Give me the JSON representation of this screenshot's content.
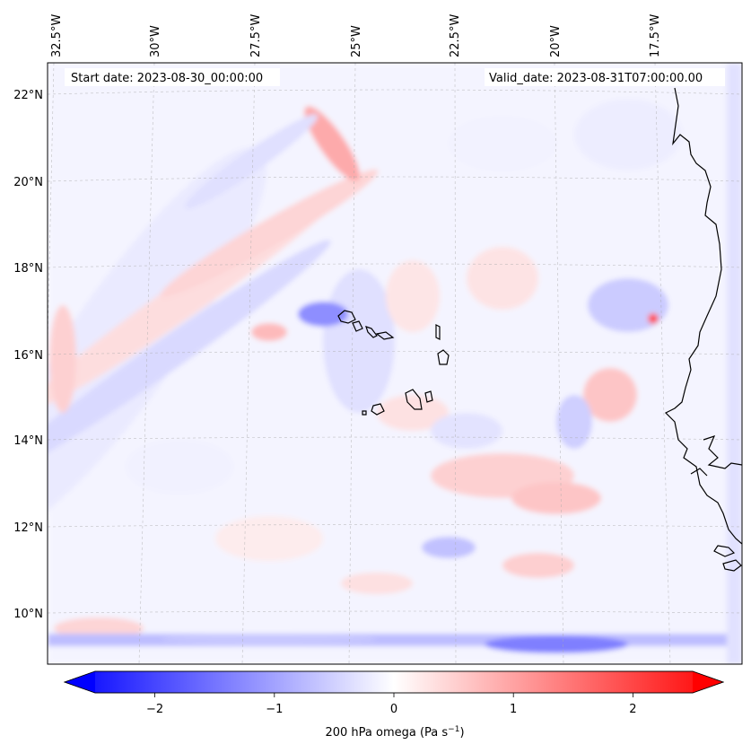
{
  "header": {
    "start_label": "Start date: 2023-08-30_00:00:00",
    "valid_label": "Valid_date: 2023-08-31T07:00:00.00"
  },
  "lon_labels": [
    "32.5°W",
    "30°W",
    "27.5°W",
    "25°W",
    "22.5°W",
    "20°W",
    "17.5°W"
  ],
  "lat_labels": [
    "22°N",
    "20°N",
    "18°N",
    "16°N",
    "14°N",
    "12°N",
    "10°N"
  ],
  "colorbar": {
    "label_prefix": "200 hPa omega (Pa s",
    "label_exp": "−1",
    "label_suffix": ")",
    "ticks": [
      "−2",
      "−1",
      "0",
      "1",
      "2"
    ],
    "tick_values": [
      -2,
      -1,
      0,
      1,
      2
    ],
    "range": [
      -2.5,
      2.5
    ],
    "colors": {
      "neg": "#0000ff",
      "mid": "#ffffff",
      "pos": "#ff0000"
    }
  },
  "map": {
    "colormap": "bwr",
    "coastline_color": "#000000",
    "gridline_color": "#aaaaaa"
  }
}
